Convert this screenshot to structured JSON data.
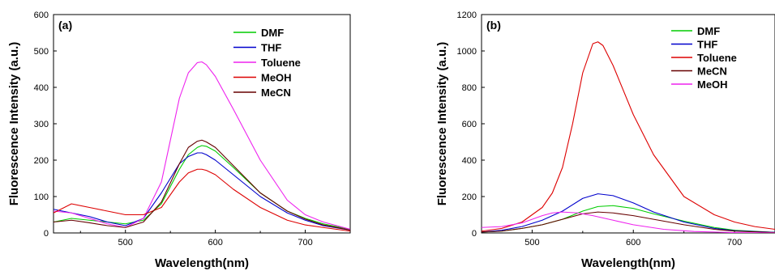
{
  "chart_data": [
    {
      "type": "line",
      "panel_label": "(a)",
      "xlabel": "Wavelength(nm)",
      "ylabel": "Fluorescence Intensity (a.u.)",
      "xlim": [
        420,
        750
      ],
      "ylim": [
        0,
        600
      ],
      "xticks": [
        500,
        600,
        700
      ],
      "yticks": [
        0,
        100,
        200,
        300,
        400,
        500,
        600
      ],
      "legend_position": "top-right",
      "series": [
        {
          "name": "DMF",
          "color": "#00cc00",
          "x": [
            420,
            440,
            460,
            480,
            500,
            520,
            540,
            560,
            570,
            580,
            585,
            590,
            600,
            620,
            650,
            680,
            700,
            720,
            750
          ],
          "y": [
            30,
            40,
            35,
            30,
            25,
            35,
            80,
            175,
            215,
            235,
            240,
            238,
            225,
            180,
            110,
            60,
            40,
            25,
            10
          ]
        },
        {
          "name": "THF",
          "color": "#0000cc",
          "x": [
            420,
            440,
            460,
            480,
            500,
            520,
            540,
            560,
            570,
            580,
            585,
            590,
            600,
            620,
            650,
            680,
            700,
            720,
            750
          ],
          "y": [
            65,
            55,
            45,
            30,
            20,
            40,
            110,
            190,
            210,
            220,
            220,
            215,
            200,
            160,
            100,
            55,
            35,
            20,
            8
          ]
        },
        {
          "name": "Toluene",
          "color": "#ee22ee",
          "x": [
            420,
            440,
            460,
            480,
            500,
            520,
            540,
            560,
            570,
            580,
            585,
            590,
            600,
            620,
            650,
            680,
            700,
            720,
            750
          ],
          "y": [
            60,
            55,
            40,
            25,
            15,
            40,
            140,
            370,
            440,
            468,
            470,
            462,
            430,
            340,
            200,
            90,
            50,
            30,
            10
          ]
        },
        {
          "name": "MeOH",
          "color": "#dd0000",
          "x": [
            420,
            440,
            460,
            480,
            500,
            520,
            540,
            560,
            570,
            580,
            585,
            590,
            600,
            620,
            650,
            680,
            700,
            720,
            750
          ],
          "y": [
            55,
            80,
            70,
            60,
            50,
            50,
            70,
            140,
            165,
            175,
            175,
            172,
            160,
            120,
            70,
            35,
            22,
            15,
            5
          ]
        },
        {
          "name": "MeCN",
          "color": "#660000",
          "x": [
            420,
            440,
            460,
            480,
            500,
            520,
            540,
            560,
            570,
            580,
            585,
            590,
            600,
            620,
            650,
            680,
            700,
            720,
            750
          ],
          "y": [
            30,
            35,
            28,
            20,
            15,
            30,
            85,
            190,
            235,
            252,
            255,
            250,
            235,
            185,
            110,
            60,
            38,
            22,
            8
          ]
        }
      ]
    },
    {
      "type": "line",
      "panel_label": "(b)",
      "xlabel": "Wavelength(nm)",
      "ylabel": "Fluorescence Intensity (a.u.)",
      "xlim": [
        450,
        740
      ],
      "ylim": [
        0,
        1200
      ],
      "xticks": [
        500,
        600,
        700
      ],
      "yticks": [
        0,
        200,
        400,
        600,
        800,
        1000,
        1200
      ],
      "legend_position": "top-right",
      "series": [
        {
          "name": "DMF",
          "color": "#00cc00",
          "x": [
            450,
            470,
            490,
            510,
            530,
            550,
            565,
            580,
            600,
            620,
            650,
            680,
            700,
            740
          ],
          "y": [
            5,
            10,
            25,
            45,
            75,
            120,
            145,
            150,
            135,
            105,
            65,
            30,
            15,
            3
          ]
        },
        {
          "name": "THF",
          "color": "#0000cc",
          "x": [
            450,
            470,
            490,
            510,
            530,
            550,
            565,
            580,
            600,
            620,
            650,
            680,
            700,
            740
          ],
          "y": [
            5,
            15,
            35,
            70,
            120,
            190,
            215,
            205,
            165,
            115,
            60,
            25,
            12,
            3
          ]
        },
        {
          "name": "Toluene",
          "color": "#dd0000",
          "x": [
            450,
            470,
            490,
            510,
            520,
            530,
            540,
            550,
            560,
            565,
            570,
            580,
            600,
            620,
            650,
            680,
            700,
            720,
            740
          ],
          "y": [
            10,
            25,
            60,
            140,
            220,
            360,
            600,
            880,
            1040,
            1050,
            1030,
            920,
            650,
            430,
            200,
            100,
            60,
            35,
            20
          ]
        },
        {
          "name": "MeCN",
          "color": "#660000",
          "x": [
            450,
            470,
            490,
            510,
            530,
            550,
            565,
            580,
            600,
            620,
            650,
            680,
            700,
            740
          ],
          "y": [
            5,
            10,
            25,
            45,
            75,
            105,
            115,
            110,
            95,
            75,
            45,
            20,
            10,
            2
          ]
        },
        {
          "name": "MeOH",
          "color": "#ee22ee",
          "x": [
            450,
            470,
            490,
            510,
            520,
            530,
            545,
            560,
            580,
            600,
            630,
            660,
            700,
            740
          ],
          "y": [
            30,
            35,
            55,
            95,
            110,
            115,
            110,
            95,
            70,
            45,
            20,
            8,
            2,
            0
          ]
        }
      ]
    }
  ]
}
